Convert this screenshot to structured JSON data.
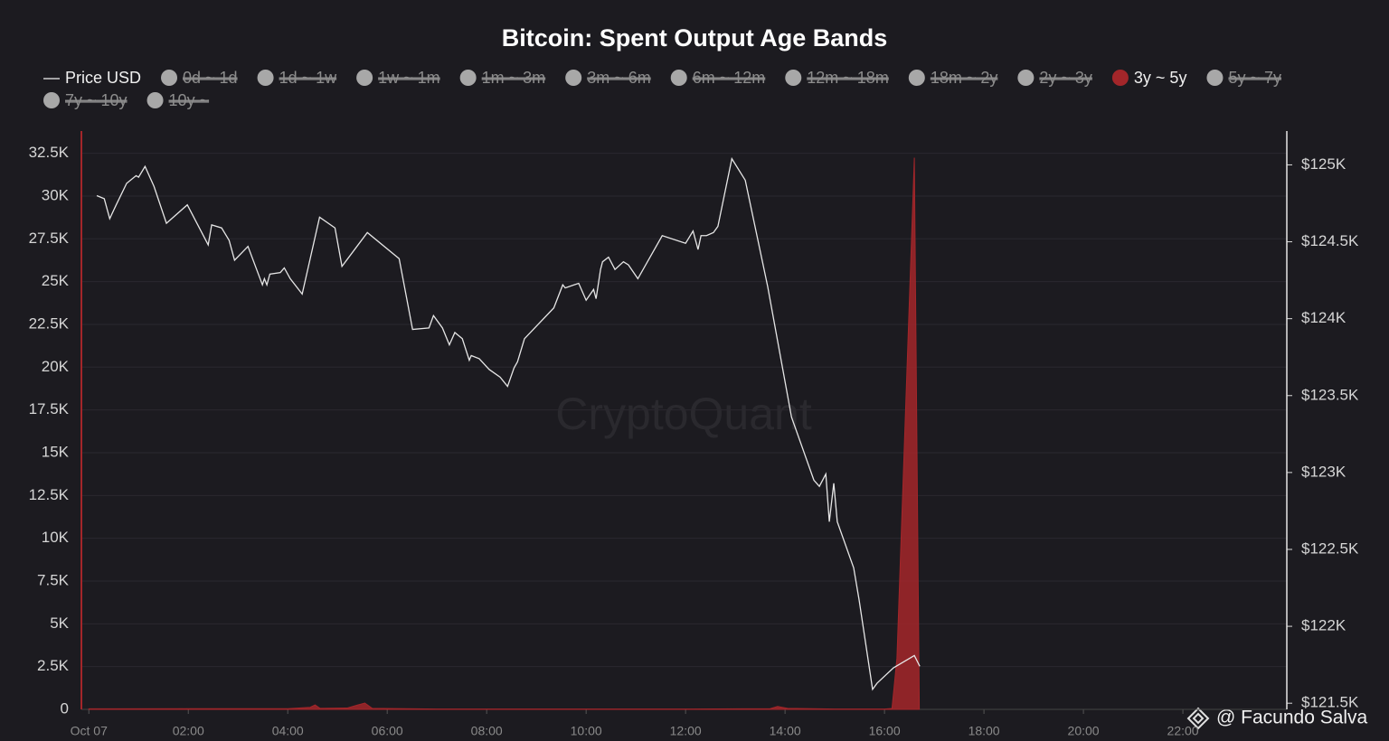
{
  "chart_data": {
    "type": "line",
    "title": "Bitcoin: Spent Output Age Bands",
    "watermark": "CryptoQuant",
    "credit": "@ Facundo Salva",
    "xlim": [
      -0.15,
      24.09
    ],
    "xticks": [
      {
        "value": 0,
        "label": "Oct 07"
      },
      {
        "value": 2,
        "label": "02:00"
      },
      {
        "value": 4,
        "label": "04:00"
      },
      {
        "value": 6,
        "label": "06:00"
      },
      {
        "value": 8,
        "label": "08:00"
      },
      {
        "value": 10,
        "label": "10:00"
      },
      {
        "value": 12,
        "label": "12:00"
      },
      {
        "value": 14,
        "label": "14:00"
      },
      {
        "value": 16,
        "label": "16:00"
      },
      {
        "value": 18,
        "label": "18:00"
      },
      {
        "value": 20,
        "label": "20:00"
      },
      {
        "value": 22,
        "label": "22:00"
      }
    ],
    "ylim": [
      0,
      33800
    ],
    "yticks": [
      0,
      {
        "value": 2500,
        "label": "2.5K"
      },
      {
        "value": 5000,
        "label": "5K"
      },
      {
        "value": 7500,
        "label": "7.5K"
      },
      {
        "value": 10000,
        "label": "10K"
      },
      {
        "value": 12500,
        "label": "12.5K"
      },
      {
        "value": 15000,
        "label": "15K"
      },
      {
        "value": 17500,
        "label": "17.5K"
      },
      {
        "value": 20000,
        "label": "20K"
      },
      {
        "value": 22500,
        "label": "22.5K"
      },
      {
        "value": 25000,
        "label": "25K"
      },
      {
        "value": 27500,
        "label": "27.5K"
      },
      {
        "value": 30000,
        "label": "30K"
      },
      {
        "value": 32500,
        "label": "32.5K"
      }
    ],
    "y2lim": [
      121460,
      125220
    ],
    "y2ticks": [
      {
        "value": 121500,
        "label": "$121.5K"
      },
      {
        "value": 122000,
        "label": "$122K"
      },
      {
        "value": 122500,
        "label": "$122.5K"
      },
      {
        "value": 123000,
        "label": "$123K"
      },
      {
        "value": 123500,
        "label": "$123.5K"
      },
      {
        "value": 124000,
        "label": "$124K"
      },
      {
        "value": 124500,
        "label": "$124.5K"
      },
      {
        "value": 125000,
        "label": "$125K"
      }
    ],
    "grid": true,
    "series": [
      {
        "name": "Price USD",
        "kind": "line",
        "color": "#e6e6e6",
        "axis": "y2",
        "x": [
          0.16,
          0.31,
          0.42,
          0.55,
          0.76,
          0.95,
          1.0,
          1.13,
          1.31,
          1.56,
          1.98,
          2.4,
          2.47,
          2.67,
          2.82,
          2.93,
          3.2,
          3.49,
          3.53,
          3.58,
          3.64,
          3.85,
          3.93,
          4.05,
          4.29,
          4.64,
          4.95,
          5.09,
          5.6,
          6.24,
          6.51,
          6.84,
          6.93,
          7.11,
          7.25,
          7.36,
          7.51,
          7.65,
          7.69,
          7.85,
          8.05,
          8.27,
          8.42,
          8.55,
          8.62,
          8.76,
          9.35,
          9.53,
          9.58,
          9.85,
          10.0,
          10.15,
          10.2,
          10.29,
          10.33,
          10.45,
          10.58,
          10.75,
          10.85,
          11.04,
          11.53,
          12.0,
          12.15,
          12.25,
          12.31,
          12.42,
          12.56,
          12.65,
          12.93,
          13.2,
          13.65,
          14.13,
          14.58,
          14.69,
          14.82,
          14.89,
          14.98,
          15.05,
          15.38,
          15.49,
          15.76,
          15.85,
          16.18,
          16.6,
          16.71
        ],
        "values": [
          124800,
          124780,
          124650,
          124740,
          124880,
          124930,
          124920,
          124990,
          124860,
          124620,
          124740,
          124480,
          124610,
          124590,
          124510,
          124380,
          124470,
          124220,
          124260,
          124220,
          124290,
          124300,
          124330,
          124260,
          124160,
          124660,
          124590,
          124340,
          124560,
          124390,
          123930,
          123940,
          124020,
          123940,
          123830,
          123910,
          123870,
          123730,
          123760,
          123740,
          123670,
          123620,
          123560,
          123680,
          123720,
          123870,
          124070,
          124220,
          124200,
          124230,
          124120,
          124190,
          124130,
          124320,
          124370,
          124400,
          124320,
          124370,
          124350,
          124260,
          124540,
          124490,
          124570,
          124450,
          124540,
          124540,
          124560,
          124600,
          125040,
          124900,
          124210,
          123360,
          122950,
          122910,
          122990,
          122680,
          122930,
          122680,
          122380,
          122170,
          121590,
          121630,
          121730,
          121810,
          121740
        ]
      },
      {
        "name": "0d ~ 1d",
        "hidden": true
      },
      {
        "name": "1d ~ 1w",
        "hidden": true
      },
      {
        "name": "1w ~ 1m",
        "hidden": true
      },
      {
        "name": "1m ~ 3m",
        "hidden": true
      },
      {
        "name": "3m ~ 6m",
        "hidden": true
      },
      {
        "name": "6m ~ 12m",
        "hidden": true
      },
      {
        "name": "12m ~ 18m",
        "hidden": true
      },
      {
        "name": "18m ~ 2y",
        "hidden": true
      },
      {
        "name": "2y ~ 3y",
        "hidden": true
      },
      {
        "name": "3y ~ 5y",
        "kind": "area",
        "color": "#a3262a",
        "x": [
          0.0,
          2.0,
          4.0,
          4.45,
          4.55,
          4.65,
          5.2,
          5.4,
          5.55,
          5.7,
          7.0,
          10.0,
          12.0,
          13.7,
          13.85,
          14.05,
          15.0,
          16.0,
          16.15,
          16.25,
          16.6,
          16.7
        ],
        "values": [
          30,
          40,
          40,
          120,
          260,
          60,
          80,
          250,
          370,
          60,
          20,
          20,
          20,
          40,
          170,
          60,
          20,
          20,
          50,
          3000,
          32240,
          30
        ]
      },
      {
        "name": "5y ~ 7y",
        "hidden": true
      },
      {
        "name": "7y ~ 10y",
        "hidden": true
      },
      {
        "name": "10y ~",
        "hidden": true
      }
    ]
  }
}
